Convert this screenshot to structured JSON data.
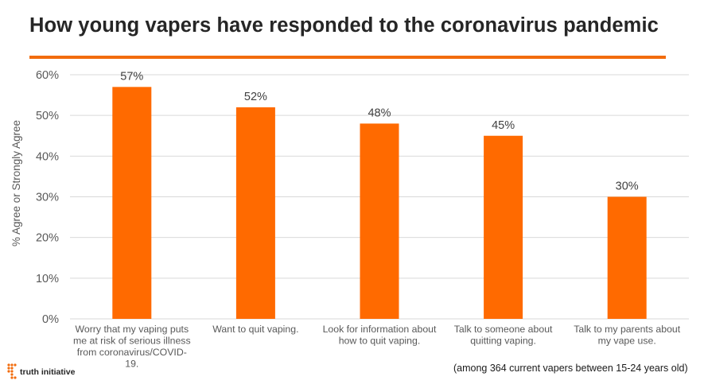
{
  "title": "How young vapers have responded to the coronavirus pandemic",
  "accent_color": "#f26c0d",
  "bar_color": "#ff6a00",
  "note": "(among 364 current vapers between 15-24 years old)",
  "logo": {
    "text": "truth initiative",
    "icon": "truth-initiative-dots-icon"
  },
  "chart_data": {
    "type": "bar",
    "ylabel": "% Agree or Strongly Agree",
    "ylim": [
      0,
      60
    ],
    "yticks": [
      0,
      10,
      20,
      30,
      40,
      50,
      60
    ],
    "ytick_labels": [
      "0%",
      "10%",
      "20%",
      "30%",
      "40%",
      "50%",
      "60%"
    ],
    "grid": true,
    "categories": [
      [
        "Worry that my vaping puts",
        "me at risk of serious illness",
        "from coronavirus/COVID-",
        "19."
      ],
      [
        "Want to quit vaping."
      ],
      [
        "Look for information about",
        "how to quit vaping."
      ],
      [
        "Talk to someone about",
        "quitting vaping."
      ],
      [
        "Talk to my parents about",
        "my vape use."
      ]
    ],
    "values": [
      57,
      52,
      48,
      45,
      30
    ],
    "data_labels": [
      "57%",
      "52%",
      "48%",
      "45%",
      "30%"
    ]
  }
}
